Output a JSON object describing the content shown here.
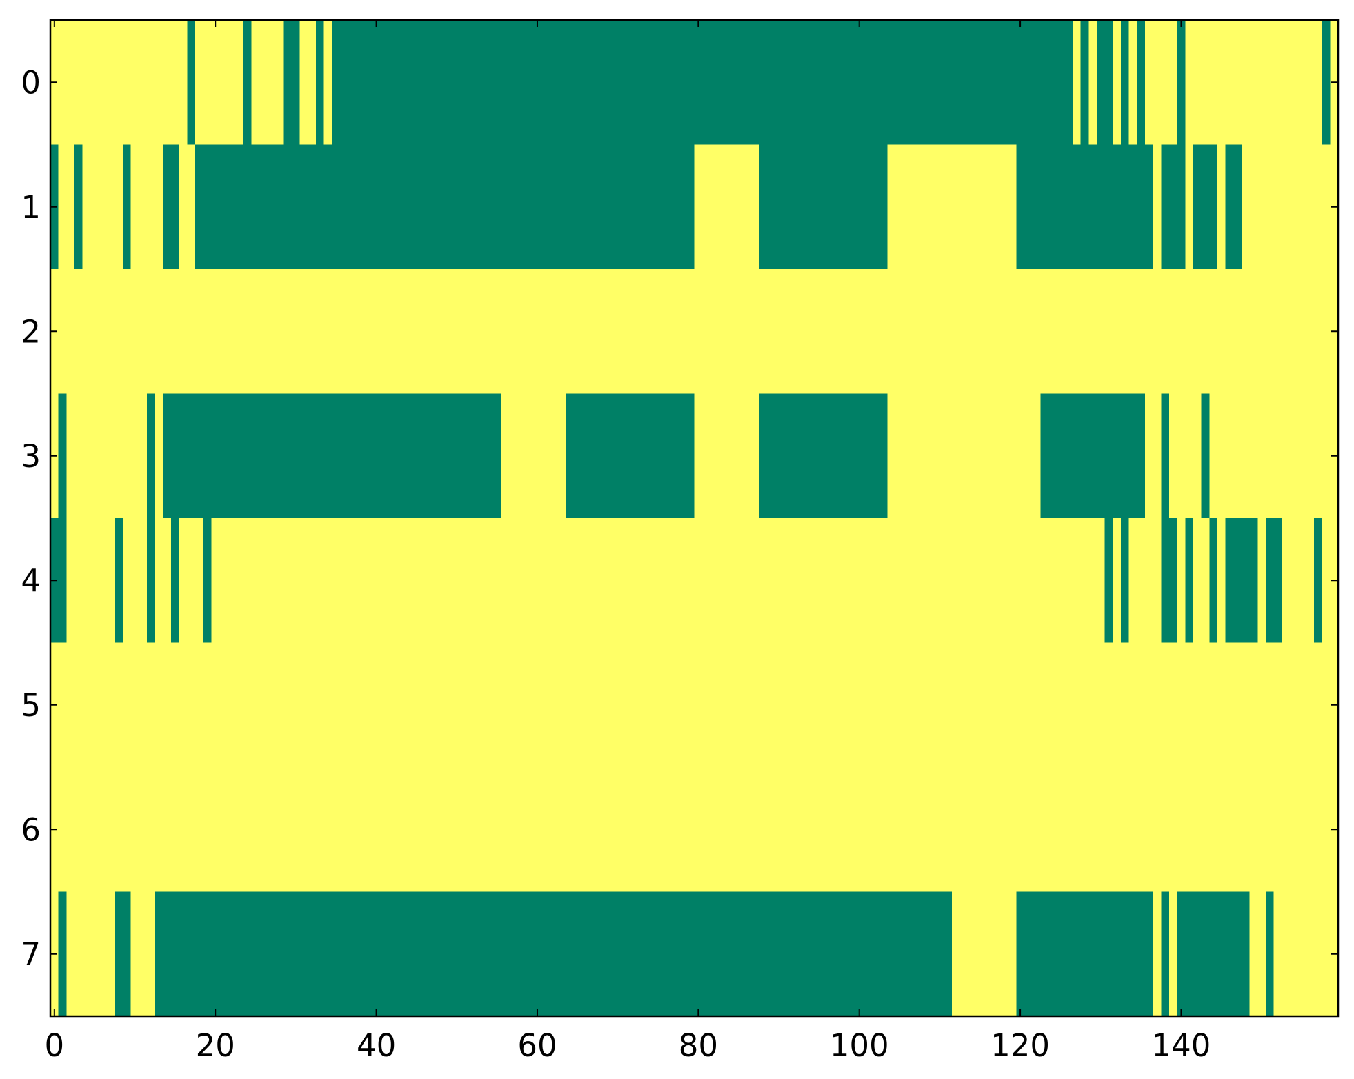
{
  "chart_data": {
    "type": "heatmap",
    "colorscale": [
      "#008066",
      "#ffff66"
    ],
    "xlim": [
      -0.5,
      159.5
    ],
    "ylim": [
      7.5,
      -0.5
    ],
    "xticks": [
      0,
      20,
      40,
      60,
      80,
      100,
      120,
      140
    ],
    "yticks": [
      0,
      1,
      2,
      3,
      4,
      5,
      6,
      7
    ],
    "values": [
      [
        1,
        1,
        1,
        1,
        1,
        1,
        1,
        1,
        1,
        1,
        1,
        1,
        1,
        1,
        1,
        1,
        1,
        0,
        1,
        1,
        1,
        1,
        1,
        1,
        0,
        1,
        1,
        1,
        1,
        0,
        0,
        1,
        1,
        0,
        1,
        0,
        0,
        0,
        0,
        0,
        0,
        0,
        0,
        0,
        0,
        0,
        0,
        0,
        0,
        0,
        0,
        0,
        0,
        0,
        0,
        0,
        0,
        0,
        0,
        0,
        0,
        0,
        0,
        0,
        0,
        0,
        0,
        0,
        0,
        0,
        0,
        0,
        0,
        0,
        0,
        0,
        0,
        0,
        0,
        0,
        0,
        0,
        0,
        0,
        0,
        0,
        0,
        0,
        0,
        0,
        0,
        0,
        0,
        0,
        0,
        0,
        0,
        0,
        0,
        0,
        0,
        0,
        0,
        0,
        0,
        0,
        0,
        0,
        0,
        0,
        0,
        0,
        0,
        0,
        0,
        0,
        0,
        0,
        0,
        0,
        0,
        0,
        0,
        0,
        0,
        0,
        0,
        1,
        0,
        1,
        0,
        0,
        1,
        0,
        1,
        0,
        1,
        1,
        1,
        1,
        0,
        1,
        1,
        1,
        1,
        1,
        1,
        1,
        1,
        1,
        1,
        1,
        1,
        1,
        1,
        1,
        1,
        1,
        0,
        1
      ],
      [
        0,
        1,
        1,
        0,
        1,
        1,
        1,
        1,
        1,
        0,
        1,
        1,
        1,
        1,
        0,
        0,
        1,
        1,
        0,
        0,
        0,
        0,
        0,
        0,
        0,
        0,
        0,
        0,
        0,
        0,
        0,
        0,
        0,
        0,
        0,
        0,
        0,
        0,
        0,
        0,
        0,
        0,
        0,
        0,
        0,
        0,
        0,
        0,
        0,
        0,
        0,
        0,
        0,
        0,
        0,
        0,
        0,
        0,
        0,
        0,
        0,
        0,
        0,
        0,
        0,
        0,
        0,
        0,
        0,
        0,
        0,
        0,
        0,
        0,
        0,
        0,
        0,
        0,
        0,
        0,
        1,
        1,
        1,
        1,
        1,
        1,
        1,
        1,
        0,
        0,
        0,
        0,
        0,
        0,
        0,
        0,
        0,
        0,
        0,
        0,
        0,
        0,
        0,
        0,
        1,
        1,
        1,
        1,
        1,
        1,
        1,
        1,
        1,
        1,
        1,
        1,
        1,
        1,
        1,
        1,
        0,
        0,
        0,
        0,
        0,
        0,
        0,
        0,
        0,
        0,
        0,
        0,
        0,
        0,
        0,
        0,
        0,
        1,
        0,
        0,
        0,
        1,
        0,
        0,
        0,
        1,
        0,
        0,
        1,
        1,
        1,
        1,
        1,
        1,
        1,
        1,
        1,
        1,
        1,
        1
      ],
      [
        1,
        1,
        1,
        1,
        1,
        1,
        1,
        1,
        1,
        1,
        1,
        1,
        1,
        1,
        1,
        1,
        1,
        1,
        1,
        1,
        1,
        1,
        1,
        1,
        1,
        1,
        1,
        1,
        1,
        1,
        1,
        1,
        1,
        1,
        1,
        1,
        1,
        1,
        1,
        1,
        1,
        1,
        1,
        1,
        1,
        1,
        1,
        1,
        1,
        1,
        1,
        1,
        1,
        1,
        1,
        1,
        1,
        1,
        1,
        1,
        1,
        1,
        1,
        1,
        1,
        1,
        1,
        1,
        1,
        1,
        1,
        1,
        1,
        1,
        1,
        1,
        1,
        1,
        1,
        1,
        1,
        1,
        1,
        1,
        1,
        1,
        1,
        1,
        1,
        1,
        1,
        1,
        1,
        1,
        1,
        1,
        1,
        1,
        1,
        1,
        1,
        1,
        1,
        1,
        1,
        1,
        1,
        1,
        1,
        1,
        1,
        1,
        1,
        1,
        1,
        1,
        1,
        1,
        1,
        1,
        1,
        1,
        1,
        1,
        1,
        1,
        1,
        1,
        1,
        1,
        1,
        1,
        1,
        1,
        1,
        1,
        1,
        1,
        1,
        1,
        1,
        1,
        1,
        1,
        1,
        1,
        1,
        1,
        1,
        1,
        1,
        1,
        1,
        1,
        1,
        1,
        1,
        1,
        1,
        1
      ],
      [
        1,
        0,
        1,
        1,
        1,
        1,
        1,
        1,
        1,
        1,
        1,
        1,
        0,
        1,
        0,
        0,
        0,
        0,
        0,
        0,
        0,
        0,
        0,
        0,
        0,
        0,
        0,
        0,
        0,
        0,
        0,
        0,
        0,
        0,
        0,
        0,
        0,
        0,
        0,
        0,
        0,
        0,
        0,
        0,
        0,
        0,
        0,
        0,
        0,
        0,
        0,
        0,
        0,
        0,
        0,
        0,
        1,
        1,
        1,
        1,
        1,
        1,
        1,
        1,
        0,
        0,
        0,
        0,
        0,
        0,
        0,
        0,
        0,
        0,
        0,
        0,
        0,
        0,
        0,
        0,
        1,
        1,
        1,
        1,
        1,
        1,
        1,
        1,
        0,
        0,
        0,
        0,
        0,
        0,
        0,
        0,
        0,
        0,
        0,
        0,
        0,
        0,
        0,
        0,
        1,
        1,
        1,
        1,
        1,
        1,
        1,
        1,
        1,
        1,
        1,
        1,
        1,
        1,
        1,
        1,
        1,
        1,
        1,
        0,
        0,
        0,
        0,
        0,
        0,
        0,
        0,
        0,
        0,
        0,
        0,
        0,
        1,
        1,
        0,
        1,
        1,
        1,
        1,
        0,
        1,
        1,
        1,
        1,
        1,
        1,
        1,
        1,
        1,
        1,
        1,
        1,
        1,
        1,
        1,
        1
      ],
      [
        0,
        0,
        1,
        1,
        1,
        1,
        1,
        1,
        0,
        1,
        1,
        1,
        0,
        1,
        1,
        0,
        1,
        1,
        1,
        0,
        1,
        1,
        1,
        1,
        1,
        1,
        1,
        1,
        1,
        1,
        1,
        1,
        1,
        1,
        1,
        1,
        1,
        1,
        1,
        1,
        1,
        1,
        1,
        1,
        1,
        1,
        1,
        1,
        1,
        1,
        1,
        1,
        1,
        1,
        1,
        1,
        1,
        1,
        1,
        1,
        1,
        1,
        1,
        1,
        1,
        1,
        1,
        1,
        1,
        1,
        1,
        1,
        1,
        1,
        1,
        1,
        1,
        1,
        1,
        1,
        1,
        1,
        1,
        1,
        1,
        1,
        1,
        1,
        1,
        1,
        1,
        1,
        1,
        1,
        1,
        1,
        1,
        1,
        1,
        1,
        1,
        1,
        1,
        1,
        1,
        1,
        1,
        1,
        1,
        1,
        1,
        1,
        1,
        1,
        1,
        1,
        1,
        1,
        1,
        1,
        1,
        1,
        1,
        1,
        1,
        1,
        1,
        1,
        1,
        1,
        1,
        0,
        1,
        0,
        1,
        1,
        1,
        1,
        0,
        0,
        1,
        0,
        1,
        1,
        0,
        1,
        0,
        0,
        0,
        0,
        1,
        0,
        0,
        1,
        1,
        1,
        1,
        0,
        1,
        1
      ],
      [
        1,
        1,
        1,
        1,
        1,
        1,
        1,
        1,
        1,
        1,
        1,
        1,
        1,
        1,
        1,
        1,
        1,
        1,
        1,
        1,
        1,
        1,
        1,
        1,
        1,
        1,
        1,
        1,
        1,
        1,
        1,
        1,
        1,
        1,
        1,
        1,
        1,
        1,
        1,
        1,
        1,
        1,
        1,
        1,
        1,
        1,
        1,
        1,
        1,
        1,
        1,
        1,
        1,
        1,
        1,
        1,
        1,
        1,
        1,
        1,
        1,
        1,
        1,
        1,
        1,
        1,
        1,
        1,
        1,
        1,
        1,
        1,
        1,
        1,
        1,
        1,
        1,
        1,
        1,
        1,
        1,
        1,
        1,
        1,
        1,
        1,
        1,
        1,
        1,
        1,
        1,
        1,
        1,
        1,
        1,
        1,
        1,
        1,
        1,
        1,
        1,
        1,
        1,
        1,
        1,
        1,
        1,
        1,
        1,
        1,
        1,
        1,
        1,
        1,
        1,
        1,
        1,
        1,
        1,
        1,
        1,
        1,
        1,
        1,
        1,
        1,
        1,
        1,
        1,
        1,
        1,
        1,
        1,
        1,
        1,
        1,
        1,
        1,
        1,
        1,
        1,
        1,
        1,
        1,
        1,
        1,
        1,
        1,
        1,
        1,
        1,
        1,
        1,
        1,
        1,
        1,
        1,
        1,
        1,
        1
      ],
      [
        1,
        1,
        1,
        1,
        1,
        1,
        1,
        1,
        1,
        1,
        1,
        1,
        1,
        1,
        1,
        1,
        1,
        1,
        1,
        1,
        1,
        1,
        1,
        1,
        1,
        1,
        1,
        1,
        1,
        1,
        1,
        1,
        1,
        1,
        1,
        1,
        1,
        1,
        1,
        1,
        1,
        1,
        1,
        1,
        1,
        1,
        1,
        1,
        1,
        1,
        1,
        1,
        1,
        1,
        1,
        1,
        1,
        1,
        1,
        1,
        1,
        1,
        1,
        1,
        1,
        1,
        1,
        1,
        1,
        1,
        1,
        1,
        1,
        1,
        1,
        1,
        1,
        1,
        1,
        1,
        1,
        1,
        1,
        1,
        1,
        1,
        1,
        1,
        1,
        1,
        1,
        1,
        1,
        1,
        1,
        1,
        1,
        1,
        1,
        1,
        1,
        1,
        1,
        1,
        1,
        1,
        1,
        1,
        1,
        1,
        1,
        1,
        1,
        1,
        1,
        1,
        1,
        1,
        1,
        1,
        1,
        1,
        1,
        1,
        1,
        1,
        1,
        1,
        1,
        1,
        1,
        1,
        1,
        1,
        1,
        1,
        1,
        1,
        1,
        1,
        1,
        1,
        1,
        1,
        1,
        1,
        1,
        1,
        1,
        1,
        1,
        1,
        1,
        1,
        1,
        1,
        1,
        1,
        1,
        1
      ],
      [
        1,
        0,
        1,
        1,
        1,
        1,
        1,
        1,
        0,
        0,
        1,
        1,
        1,
        0,
        0,
        0,
        0,
        0,
        0,
        0,
        0,
        0,
        0,
        0,
        0,
        0,
        0,
        0,
        0,
        0,
        0,
        0,
        0,
        0,
        0,
        0,
        0,
        0,
        0,
        0,
        0,
        0,
        0,
        0,
        0,
        0,
        0,
        0,
        0,
        0,
        0,
        0,
        0,
        0,
        0,
        0,
        0,
        0,
        0,
        0,
        0,
        0,
        0,
        0,
        0,
        0,
        0,
        0,
        0,
        0,
        0,
        0,
        0,
        0,
        0,
        0,
        0,
        0,
        0,
        0,
        0,
        0,
        0,
        0,
        0,
        0,
        0,
        0,
        0,
        0,
        0,
        0,
        0,
        0,
        0,
        0,
        0,
        0,
        0,
        0,
        0,
        0,
        0,
        0,
        0,
        0,
        0,
        0,
        0,
        0,
        0,
        0,
        1,
        1,
        1,
        1,
        1,
        1,
        1,
        1,
        0,
        0,
        0,
        0,
        0,
        0,
        0,
        0,
        0,
        0,
        0,
        0,
        0,
        0,
        0,
        0,
        0,
        1,
        0,
        1,
        0,
        0,
        0,
        0,
        0,
        0,
        0,
        0,
        0,
        1,
        1,
        0,
        1,
        1,
        1,
        1,
        1,
        1,
        1,
        1
      ]
    ]
  }
}
